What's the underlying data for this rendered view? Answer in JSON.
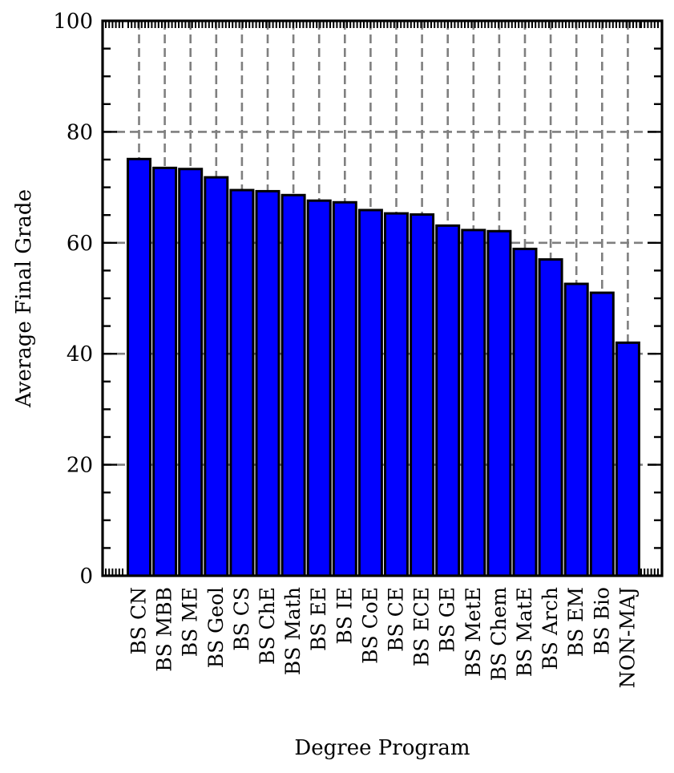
{
  "chart_data": {
    "type": "bar",
    "title": "",
    "xlabel": "Degree Program",
    "ylabel": "Average Final Grade",
    "ylim": [
      0,
      100
    ],
    "y_ticks": [
      "0",
      "20",
      "40",
      "60",
      "80",
      "100"
    ],
    "grid": true,
    "bar_color": "#0000ff",
    "edge_color": "#000000",
    "categories": [
      "BS CN",
      "BS MBB",
      "BS ME",
      "BS Geol",
      "BS CS",
      "BS ChE",
      "BS Math",
      "BS EE",
      "BS IE",
      "BS CoE",
      "BS CE",
      "BS ECE",
      "BS GE",
      "BS MetE",
      "BS Chem",
      "BS MatE",
      "BS Arch",
      "BS EM",
      "BS Bio",
      "NON-MAJ"
    ],
    "values": [
      75.1,
      73.5,
      73.3,
      71.8,
      69.5,
      69.3,
      68.6,
      67.6,
      67.3,
      65.9,
      65.3,
      65.1,
      63.1,
      62.3,
      62.1,
      58.9,
      57.0,
      52.6,
      51.0,
      42.0
    ]
  }
}
